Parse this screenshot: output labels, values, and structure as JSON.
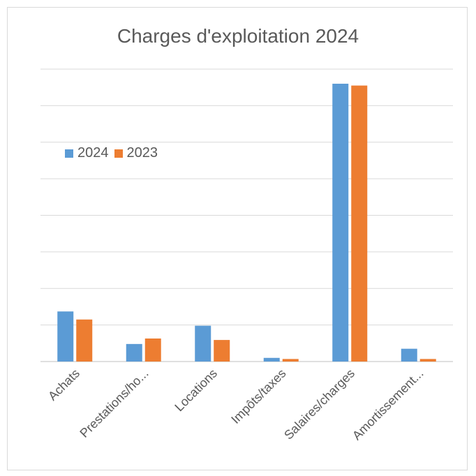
{
  "chart_data": {
    "type": "bar",
    "title": "Charges d'exploitation 2024",
    "categories": [
      "Achats",
      "Prestations/ho...",
      "Locations",
      "Impôts/taxes",
      "Salaires/charges",
      "Amortissement..."
    ],
    "series": [
      {
        "name": "2024",
        "color": "#5B9BD5",
        "values": [
          1.37,
          0.48,
          0.98,
          0.1,
          7.6,
          0.35
        ]
      },
      {
        "name": "2023",
        "color": "#ED7D31",
        "values": [
          1.15,
          0.63,
          0.59,
          0.07,
          7.55,
          0.07
        ]
      }
    ],
    "ylim": [
      0,
      8
    ],
    "ytick_step": 1,
    "grid": true,
    "y_tick_labels_shown": false,
    "legend_position": "left"
  }
}
